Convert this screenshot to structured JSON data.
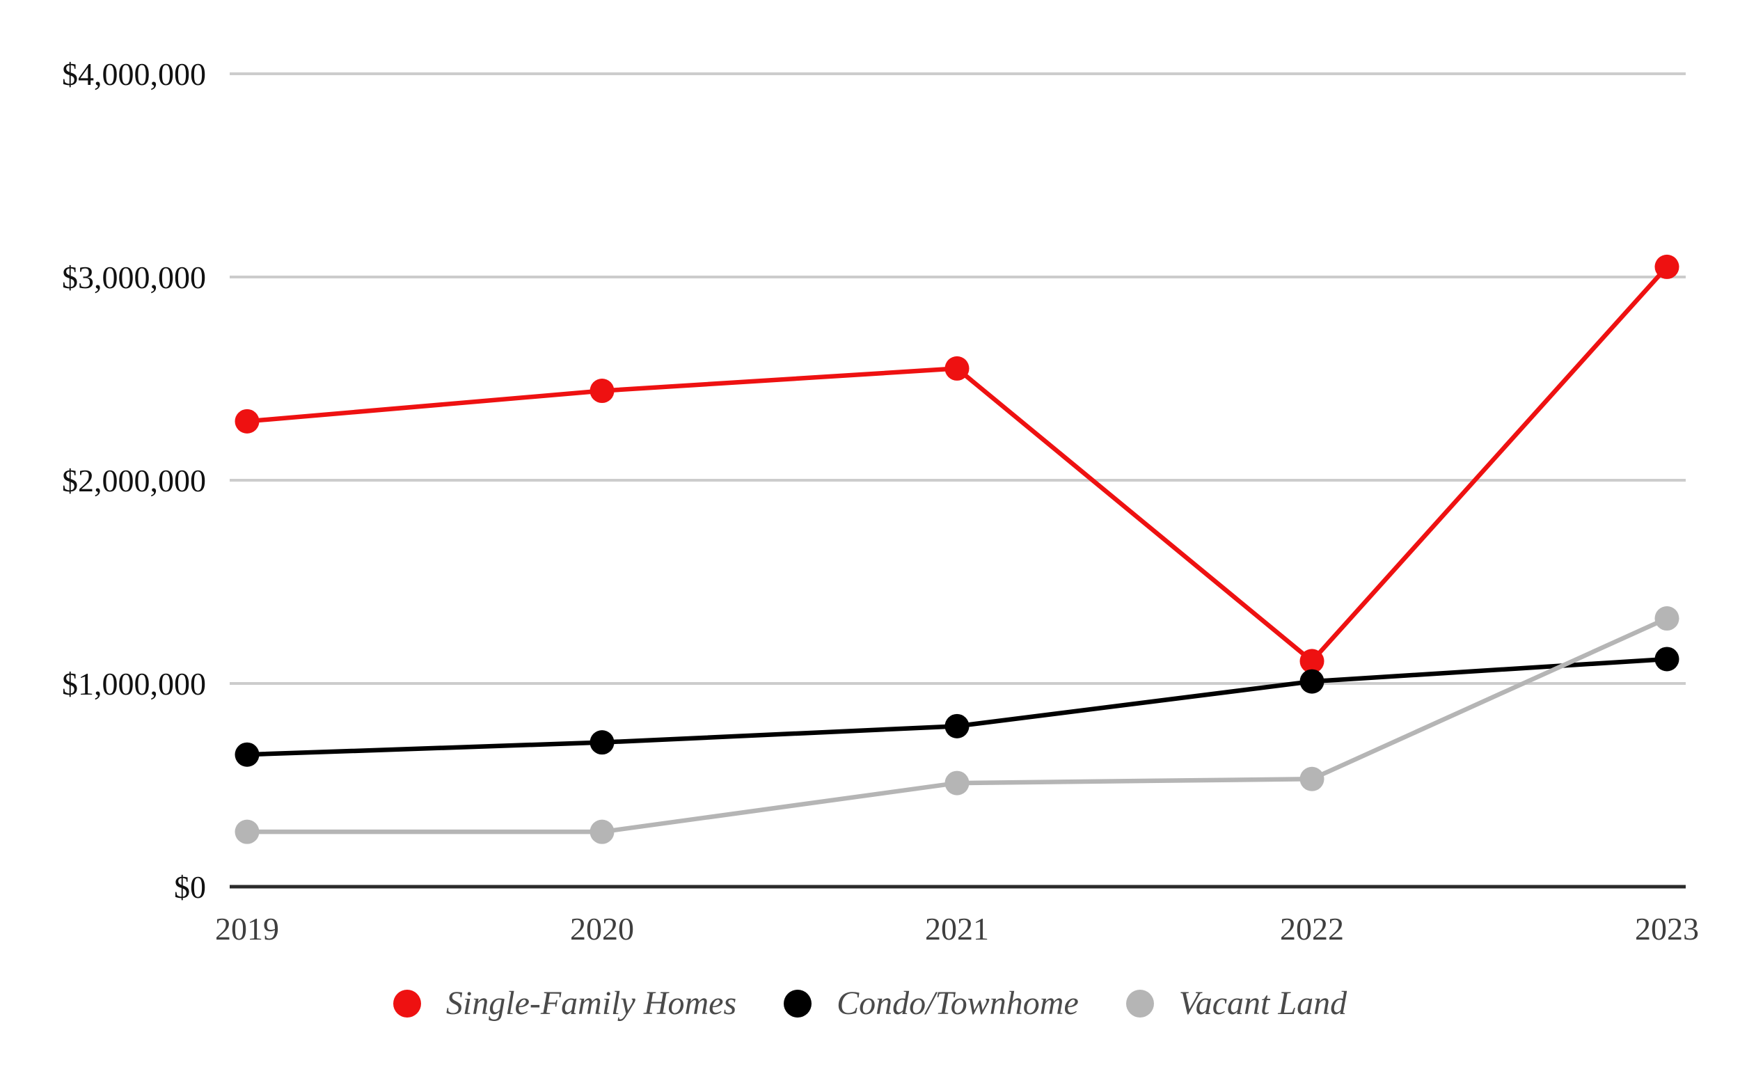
{
  "chart_data": {
    "type": "line",
    "title": "",
    "xlabel": "",
    "ylabel": "",
    "x_categories": [
      "2019",
      "2020",
      "2021",
      "2022",
      "2023"
    ],
    "series": [
      {
        "name": "Single-Family Homes",
        "color": "#ee1111",
        "values": [
          2290000,
          2440000,
          2550000,
          1110000,
          3050000
        ]
      },
      {
        "name": "Condo/Townhome",
        "color": "#000000",
        "values": [
          650000,
          710000,
          790000,
          1010000,
          1120000
        ]
      },
      {
        "name": "Vacant Land",
        "color": "#b5b5b5",
        "values": [
          270000,
          270000,
          510000,
          530000,
          1320000
        ]
      }
    ],
    "ylim": [
      0,
      4000000
    ],
    "y_ticks": [
      {
        "value": 0,
        "label": "$0"
      },
      {
        "value": 1000000,
        "label": "$1,000,000"
      },
      {
        "value": 2000000,
        "label": "$2,000,000"
      },
      {
        "value": 3000000,
        "label": "$3,000,000"
      },
      {
        "value": 4000000,
        "label": "$4,000,000"
      }
    ],
    "grid": true,
    "legend_position": "bottom",
    "marker": "circle"
  },
  "legend": {
    "items": [
      {
        "label": "Single-Family Homes",
        "color": "#ee1111"
      },
      {
        "label": "Condo/Townhome",
        "color": "#000000"
      },
      {
        "label": "Vacant Land",
        "color": "#b5b5b5"
      }
    ]
  },
  "colors": {
    "background": "#ffffff",
    "gridline": "#cccccc",
    "axis": "#2b2b2b",
    "y_tick_label": "#111111",
    "x_tick_label": "#3f3f3f",
    "legend_text": "#4a4a4a"
  }
}
